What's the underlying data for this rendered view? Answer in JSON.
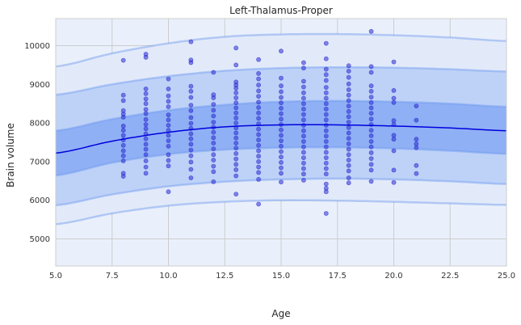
{
  "chart_data": {
    "type": "scatter",
    "title": "Left-Thalamus-Proper",
    "xlabel": "Age",
    "ylabel": "Brain volume",
    "xlim": [
      5.0,
      25.0
    ],
    "ylim": [
      4300,
      10700
    ],
    "x_ticks": [
      5.0,
      7.5,
      10.0,
      12.5,
      15.0,
      17.5,
      20.0,
      22.5,
      25.0
    ],
    "x_tick_labels": [
      "5.0",
      "7.5",
      "10.0",
      "12.5",
      "15.0",
      "17.5",
      "20.0",
      "22.5",
      "25.0"
    ],
    "y_ticks": [
      5000,
      6000,
      7000,
      8000,
      9000,
      10000
    ],
    "y_tick_labels": [
      "5000",
      "6000",
      "7000",
      "8000",
      "9000",
      "10000"
    ],
    "grid": true,
    "legend": "none",
    "colors": {
      "background": "#eaf0fb",
      "grid": "#cccccc",
      "band_inner": "#8fb0f5",
      "band_middle": "#bed2f8",
      "band_outer": "#e2eafa",
      "band_edge": "#6f98ee",
      "mean_line": "#0000dd",
      "points": "#2a2ad0"
    },
    "mean_curve": {
      "x": [
        5.0,
        7.5,
        10.0,
        12.5,
        15.0,
        17.5,
        20.0,
        22.5,
        25.0
      ],
      "y": [
        7220,
        7530,
        7760,
        7900,
        7950,
        7950,
        7920,
        7870,
        7800
      ]
    },
    "bands": [
      {
        "level": "outer",
        "upper": [
          9460,
          9800,
          10060,
          10230,
          10290,
          10300,
          10270,
          10210,
          10120
        ],
        "lower": [
          5380,
          5660,
          5860,
          5960,
          6000,
          5990,
          5960,
          5920,
          5880
        ]
      },
      {
        "level": "middle",
        "upper": [
          8730,
          9000,
          9210,
          9350,
          9420,
          9440,
          9430,
          9390,
          9330
        ],
        "lower": [
          5870,
          6150,
          6360,
          6480,
          6540,
          6560,
          6540,
          6490,
          6420
        ]
      },
      {
        "level": "inner",
        "upper": [
          7800,
          8100,
          8330,
          8470,
          8550,
          8570,
          8550,
          8500,
          8420
        ],
        "lower": [
          6640,
          6970,
          7190,
          7310,
          7360,
          7370,
          7340,
          7280,
          7200
        ]
      }
    ],
    "points": [
      [
        8,
        9620
      ],
      [
        8,
        8720
      ],
      [
        8,
        8580
      ],
      [
        8,
        8320
      ],
      [
        8,
        8230
      ],
      [
        8,
        8150
      ],
      [
        8,
        7920
      ],
      [
        8,
        7810
      ],
      [
        8,
        7680
      ],
      [
        8,
        7560
      ],
      [
        8,
        7420
      ],
      [
        8,
        7280
      ],
      [
        8,
        7150
      ],
      [
        8,
        7020
      ],
      [
        8,
        6700
      ],
      [
        8,
        6620
      ],
      [
        9,
        9780
      ],
      [
        9,
        9700
      ],
      [
        9,
        8880
      ],
      [
        9,
        8760
      ],
      [
        9,
        8620
      ],
      [
        9,
        8500
      ],
      [
        9,
        8350
      ],
      [
        9,
        8240
      ],
      [
        9,
        8090
      ],
      [
        9,
        7960
      ],
      [
        9,
        7850
      ],
      [
        9,
        7720
      ],
      [
        9,
        7590
      ],
      [
        9,
        7450
      ],
      [
        9,
        7320
      ],
      [
        9,
        7180
      ],
      [
        9,
        7020
      ],
      [
        9,
        6860
      ],
      [
        9,
        6700
      ],
      [
        10,
        9140
      ],
      [
        10,
        8880
      ],
      [
        10,
        8700
      ],
      [
        10,
        8560
      ],
      [
        10,
        8420
      ],
      [
        10,
        8210
      ],
      [
        10,
        8080
      ],
      [
        10,
        7940
      ],
      [
        10,
        7810
      ],
      [
        10,
        7680
      ],
      [
        10,
        7540
      ],
      [
        10,
        7400
      ],
      [
        10,
        7180
      ],
      [
        10,
        7030
      ],
      [
        10,
        6890
      ],
      [
        10,
        6220
      ],
      [
        11,
        10100
      ],
      [
        11,
        9630
      ],
      [
        11,
        9560
      ],
      [
        11,
        8950
      ],
      [
        11,
        8820
      ],
      [
        11,
        8660
      ],
      [
        11,
        8460
      ],
      [
        11,
        8320
      ],
      [
        11,
        8140
      ],
      [
        11,
        7990
      ],
      [
        11,
        7860
      ],
      [
        11,
        7720
      ],
      [
        11,
        7590
      ],
      [
        11,
        7450
      ],
      [
        11,
        7300
      ],
      [
        11,
        7150
      ],
      [
        11,
        6990
      ],
      [
        11,
        6800
      ],
      [
        11,
        6580
      ],
      [
        12,
        9310
      ],
      [
        12,
        8730
      ],
      [
        12,
        8650
      ],
      [
        12,
        8480
      ],
      [
        12,
        8330
      ],
      [
        12,
        8180
      ],
      [
        12,
        8020
      ],
      [
        12,
        7890
      ],
      [
        12,
        7760
      ],
      [
        12,
        7620
      ],
      [
        12,
        7480
      ],
      [
        12,
        7330
      ],
      [
        12,
        7180
      ],
      [
        12,
        7040
      ],
      [
        12,
        6880
      ],
      [
        12,
        6740
      ],
      [
        12,
        6480
      ],
      [
        13,
        9940
      ],
      [
        13,
        9500
      ],
      [
        13,
        9060
      ],
      [
        13,
        8980
      ],
      [
        13,
        8900
      ],
      [
        13,
        8780
      ],
      [
        13,
        8650
      ],
      [
        13,
        8520
      ],
      [
        13,
        8390
      ],
      [
        13,
        8260
      ],
      [
        13,
        8130
      ],
      [
        13,
        8000
      ],
      [
        13,
        7870
      ],
      [
        13,
        7740
      ],
      [
        13,
        7610
      ],
      [
        13,
        7480
      ],
      [
        13,
        7350
      ],
      [
        13,
        7210
      ],
      [
        13,
        7070
      ],
      [
        13,
        6930
      ],
      [
        13,
        6790
      ],
      [
        13,
        6630
      ],
      [
        13,
        6160
      ],
      [
        14,
        9640
      ],
      [
        14,
        9280
      ],
      [
        14,
        9140
      ],
      [
        14,
        8980
      ],
      [
        14,
        8830
      ],
      [
        14,
        8690
      ],
      [
        14,
        8540
      ],
      [
        14,
        8400
      ],
      [
        14,
        8260
      ],
      [
        14,
        8120
      ],
      [
        14,
        7980
      ],
      [
        14,
        7840
      ],
      [
        14,
        7700
      ],
      [
        14,
        7560
      ],
      [
        14,
        7420
      ],
      [
        14,
        7280
      ],
      [
        14,
        7140
      ],
      [
        14,
        7000
      ],
      [
        14,
        6860
      ],
      [
        14,
        6720
      ],
      [
        14,
        6540
      ],
      [
        14,
        5900
      ],
      [
        15,
        9860
      ],
      [
        15,
        9160
      ],
      [
        15,
        8960
      ],
      [
        15,
        8810
      ],
      [
        15,
        8660
      ],
      [
        15,
        8520
      ],
      [
        15,
        8380
      ],
      [
        15,
        8240
      ],
      [
        15,
        8100
      ],
      [
        15,
        7960
      ],
      [
        15,
        7820
      ],
      [
        15,
        7680
      ],
      [
        15,
        7540
      ],
      [
        15,
        7400
      ],
      [
        15,
        7260
      ],
      [
        15,
        7120
      ],
      [
        15,
        6980
      ],
      [
        15,
        6840
      ],
      [
        15,
        6700
      ],
      [
        15,
        6470
      ],
      [
        16,
        9560
      ],
      [
        16,
        9420
      ],
      [
        16,
        9080
      ],
      [
        16,
        8930
      ],
      [
        16,
        8780
      ],
      [
        16,
        8640
      ],
      [
        16,
        8500
      ],
      [
        16,
        8360
      ],
      [
        16,
        8220
      ],
      [
        16,
        8080
      ],
      [
        16,
        7940
      ],
      [
        16,
        7800
      ],
      [
        16,
        7660
      ],
      [
        16,
        7520
      ],
      [
        16,
        7380
      ],
      [
        16,
        7240
      ],
      [
        16,
        7100
      ],
      [
        16,
        6960
      ],
      [
        16,
        6820
      ],
      [
        16,
        6680
      ],
      [
        16,
        6520
      ],
      [
        17,
        10060
      ],
      [
        17,
        9660
      ],
      [
        17,
        9390
      ],
      [
        17,
        9250
      ],
      [
        17,
        9100
      ],
      [
        17,
        8920
      ],
      [
        17,
        8780
      ],
      [
        17,
        8640
      ],
      [
        17,
        8500
      ],
      [
        17,
        8360
      ],
      [
        17,
        8220
      ],
      [
        17,
        8080
      ],
      [
        17,
        7940
      ],
      [
        17,
        7800
      ],
      [
        17,
        7660
      ],
      [
        17,
        7520
      ],
      [
        17,
        7380
      ],
      [
        17,
        7240
      ],
      [
        17,
        7100
      ],
      [
        17,
        6960
      ],
      [
        17,
        6820
      ],
      [
        17,
        6680
      ],
      [
        17,
        6420
      ],
      [
        17,
        6310
      ],
      [
        17,
        6220
      ],
      [
        17,
        5660
      ],
      [
        18,
        9480
      ],
      [
        18,
        9340
      ],
      [
        18,
        9180
      ],
      [
        18,
        9010
      ],
      [
        18,
        8860
      ],
      [
        18,
        8720
      ],
      [
        18,
        8580
      ],
      [
        18,
        8440
      ],
      [
        18,
        8300
      ],
      [
        18,
        8160
      ],
      [
        18,
        8020
      ],
      [
        18,
        7880
      ],
      [
        18,
        7740
      ],
      [
        18,
        7600
      ],
      [
        18,
        7460
      ],
      [
        18,
        7320
      ],
      [
        18,
        7180
      ],
      [
        18,
        7040
      ],
      [
        18,
        6900
      ],
      [
        18,
        6760
      ],
      [
        18,
        6580
      ],
      [
        18,
        6450
      ],
      [
        19,
        10370
      ],
      [
        19,
        9460
      ],
      [
        19,
        9310
      ],
      [
        19,
        8960
      ],
      [
        19,
        8820
      ],
      [
        19,
        8670
      ],
      [
        19,
        8530
      ],
      [
        19,
        8390
      ],
      [
        19,
        8250
      ],
      [
        19,
        8100
      ],
      [
        19,
        7960
      ],
      [
        19,
        7810
      ],
      [
        19,
        7670
      ],
      [
        19,
        7520
      ],
      [
        19,
        7380
      ],
      [
        19,
        7230
      ],
      [
        19,
        7080
      ],
      [
        19,
        6930
      ],
      [
        19,
        6780
      ],
      [
        19,
        6490
      ],
      [
        20,
        9580
      ],
      [
        20,
        8840
      ],
      [
        20,
        8640
      ],
      [
        20,
        8530
      ],
      [
        20,
        8060
      ],
      [
        20,
        7960
      ],
      [
        20,
        7680
      ],
      [
        20,
        7580
      ],
      [
        20,
        7280
      ],
      [
        20,
        6780
      ],
      [
        20,
        6460
      ],
      [
        21,
        8440
      ],
      [
        21,
        8070
      ],
      [
        21,
        7580
      ],
      [
        21,
        7460
      ],
      [
        21,
        7360
      ],
      [
        21,
        6900
      ],
      [
        21,
        6690
      ]
    ]
  }
}
